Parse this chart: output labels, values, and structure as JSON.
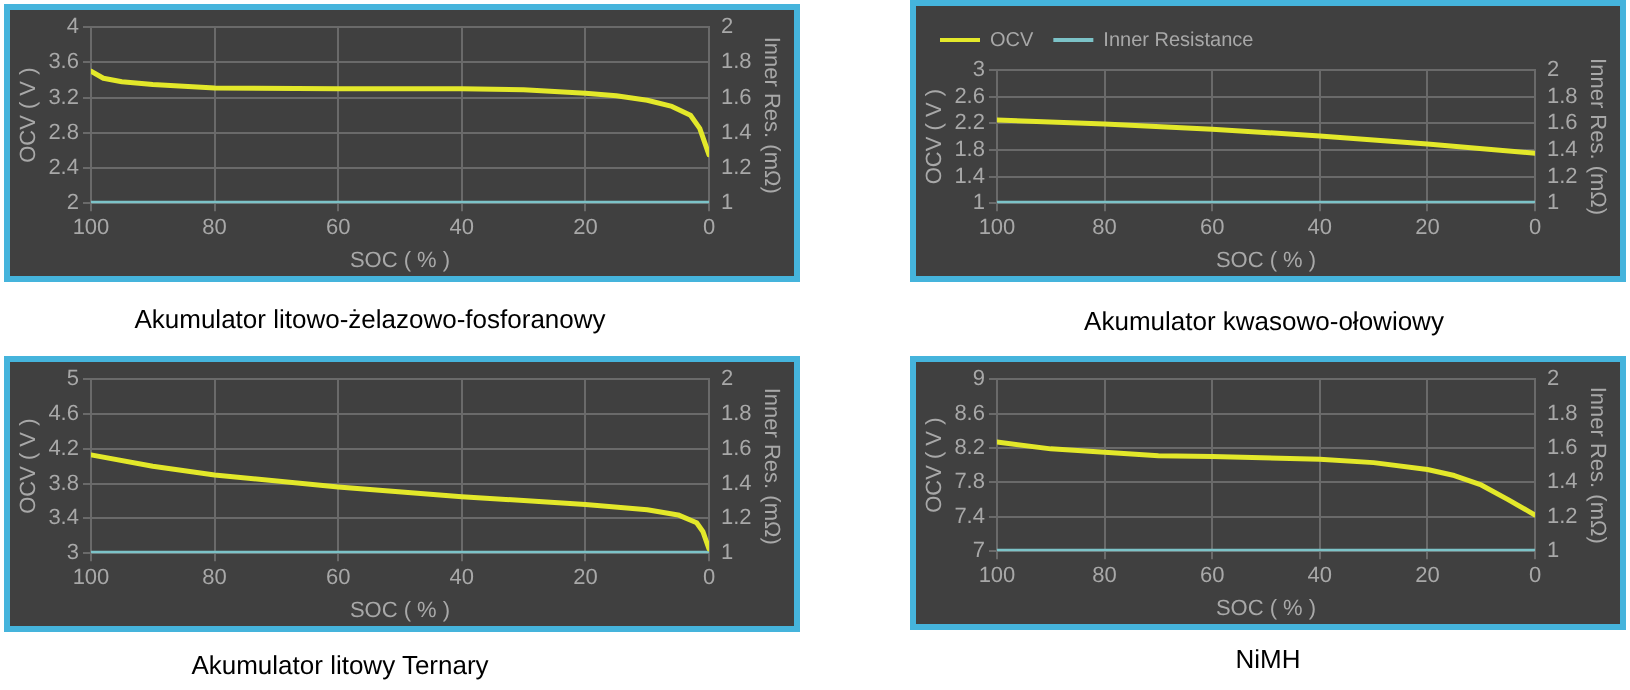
{
  "chart_data": [
    {
      "type": "line",
      "title": "Akumulator litowo-żelazowo-fosforanowy",
      "xlabel": "SOC ( % )",
      "ylabel": "OCV ( V )",
      "y2label": "Inner Res. (mΩ)",
      "xlim": [
        100,
        0
      ],
      "xticks": [
        100,
        80,
        60,
        40,
        20,
        0
      ],
      "ylim": [
        2,
        4
      ],
      "yticks": [
        2,
        2.4,
        2.8,
        3.2,
        3.6,
        4
      ],
      "y2lim": [
        1,
        2
      ],
      "y2ticks": [
        1,
        1.2,
        1.4,
        1.6,
        1.8,
        2
      ],
      "grid": true,
      "legend": false,
      "series": [
        {
          "color": "#e3e82a",
          "x": [
            100,
            98,
            95,
            90,
            80,
            60,
            40,
            30,
            20,
            15,
            10,
            6,
            3,
            1.5,
            0
          ],
          "values": [
            3.5,
            3.42,
            3.38,
            3.35,
            3.31,
            3.3,
            3.3,
            3.29,
            3.25,
            3.22,
            3.17,
            3.1,
            3.0,
            2.85,
            2.55
          ]
        },
        {
          "color": "#7cc3c8",
          "axis": "y2",
          "x": [
            100,
            0
          ],
          "values": [
            1,
            1
          ]
        }
      ]
    },
    {
      "type": "line",
      "title": "Akumulator kwasowo-ołowiowy",
      "xlabel": "SOC ( % )",
      "ylabel": "OCV ( V )",
      "y2label": "Inner Res. (mΩ)",
      "xlim": [
        100,
        0
      ],
      "xticks": [
        100,
        80,
        60,
        40,
        20,
        0
      ],
      "ylim": [
        1,
        3
      ],
      "yticks": [
        1,
        1.4,
        1.8,
        2.2,
        2.6,
        3
      ],
      "y2lim": [
        1,
        2
      ],
      "y2ticks": [
        1,
        1.2,
        1.4,
        1.6,
        1.8,
        2
      ],
      "grid": true,
      "legend": "top left",
      "series": [
        {
          "name": "OCV",
          "color": "#e3e82a",
          "x": [
            100,
            80,
            60,
            40,
            20,
            0
          ],
          "values": [
            2.25,
            2.19,
            2.11,
            2.01,
            1.89,
            1.75
          ]
        },
        {
          "name": "Inner Resistance",
          "color": "#7cc3c8",
          "axis": "y2",
          "x": [
            100,
            0
          ],
          "values": [
            1,
            1
          ]
        }
      ]
    },
    {
      "type": "line",
      "title": "Akumulator litowy Ternary",
      "xlabel": "SOC ( % )",
      "ylabel": "OCV ( V )",
      "y2label": "Inner Res. (mΩ)",
      "xlim": [
        100,
        0
      ],
      "xticks": [
        100,
        80,
        60,
        40,
        20,
        0
      ],
      "ylim": [
        3,
        5
      ],
      "yticks": [
        3,
        3.4,
        3.8,
        4.2,
        4.6,
        5
      ],
      "y2lim": [
        1,
        2
      ],
      "y2ticks": [
        1,
        1.2,
        1.4,
        1.6,
        1.8,
        2
      ],
      "grid": true,
      "legend": false,
      "series": [
        {
          "color": "#e3e82a",
          "x": [
            100,
            90,
            80,
            60,
            40,
            20,
            10,
            5,
            2,
            1,
            0
          ],
          "values": [
            4.13,
            4.0,
            3.9,
            3.76,
            3.65,
            3.56,
            3.5,
            3.44,
            3.35,
            3.25,
            3.05
          ]
        },
        {
          "color": "#7cc3c8",
          "axis": "y2",
          "x": [
            100,
            0
          ],
          "values": [
            1,
            1
          ]
        }
      ]
    },
    {
      "type": "line",
      "title": "NiMH",
      "xlabel": "SOC ( % )",
      "ylabel": "OCV ( V )",
      "y2label": "Inner Res. (mΩ)",
      "xlim": [
        100,
        0
      ],
      "xticks": [
        100,
        80,
        60,
        40,
        20,
        0
      ],
      "ylim": [
        7,
        9
      ],
      "yticks": [
        7,
        7.4,
        7.8,
        8.2,
        8.6,
        9
      ],
      "y2lim": [
        1,
        2
      ],
      "y2ticks": [
        1,
        1.2,
        1.4,
        1.6,
        1.8,
        2
      ],
      "grid": true,
      "legend": false,
      "series": [
        {
          "color": "#e3e82a",
          "x": [
            100,
            90,
            80,
            70,
            60,
            40,
            30,
            20,
            15,
            10,
            5,
            0
          ],
          "values": [
            8.27,
            8.19,
            8.15,
            8.11,
            8.1,
            8.07,
            8.03,
            7.95,
            7.88,
            7.77,
            7.6,
            7.42
          ]
        },
        {
          "color": "#7cc3c8",
          "axis": "y2",
          "x": [
            100,
            0
          ],
          "values": [
            1,
            1
          ]
        }
      ]
    }
  ]
}
